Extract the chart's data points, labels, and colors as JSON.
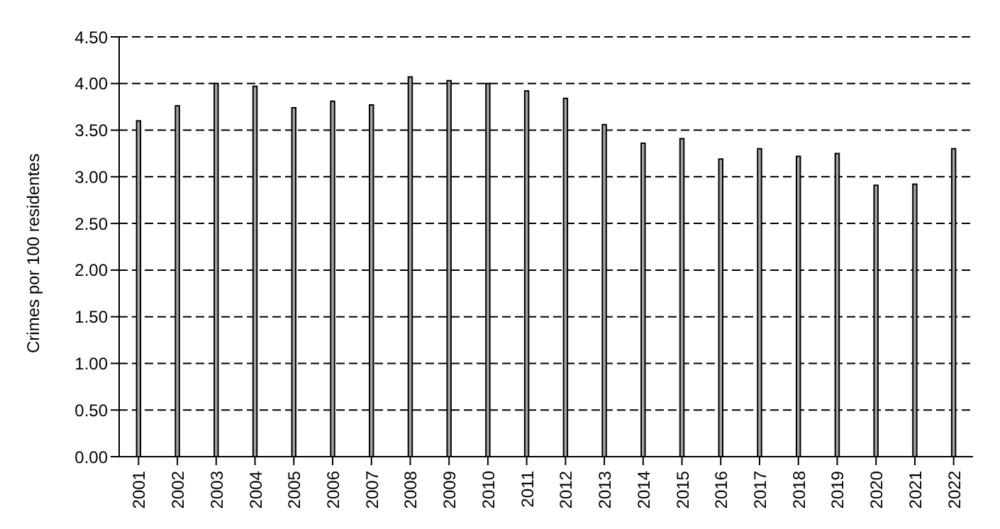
{
  "chart_data": {
    "type": "bar",
    "ylabel": "Crimes por 100 residentes",
    "categories": [
      "2001",
      "2002",
      "2003",
      "2004",
      "2005",
      "2006",
      "2007",
      "2008",
      "2009",
      "2010",
      "2011",
      "2012",
      "2013",
      "2014",
      "2015",
      "2016",
      "2017",
      "2018",
      "2019",
      "2020",
      "2021",
      "2022"
    ],
    "values": [
      3.6,
      3.76,
      4.0,
      3.97,
      3.74,
      3.81,
      3.77,
      4.07,
      4.03,
      4.0,
      3.92,
      3.84,
      3.56,
      3.36,
      3.41,
      3.19,
      3.3,
      3.22,
      3.25,
      2.91,
      2.92,
      3.3
    ],
    "color": "#a6a6a6",
    "ylim": [
      0,
      4.5
    ],
    "yticks": [
      {
        "value": 0,
        "label": "0.00"
      },
      {
        "value": 0.5,
        "label": "0.50"
      },
      {
        "value": 1,
        "label": "1.00"
      },
      {
        "value": 1.5,
        "label": "1.50"
      },
      {
        "value": 2,
        "label": "2.00"
      },
      {
        "value": 2.5,
        "label": "2.50"
      },
      {
        "value": 3,
        "label": "3.00"
      },
      {
        "value": 3.5,
        "label": "3.50"
      },
      {
        "value": 4,
        "label": "4.00"
      },
      {
        "value": 4.5,
        "label": "4.50"
      }
    ],
    "grid": "y"
  }
}
